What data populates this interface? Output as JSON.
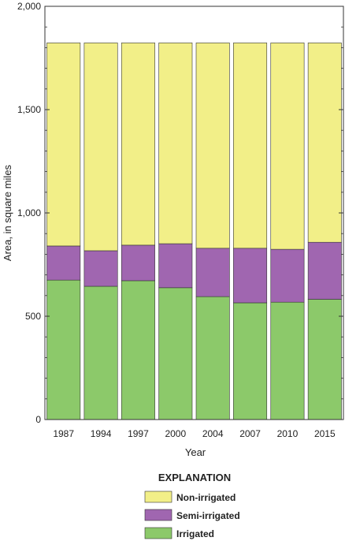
{
  "chart_data": {
    "type": "bar",
    "stacked": true,
    "categories": [
      "1987",
      "1994",
      "1997",
      "2000",
      "2004",
      "2007",
      "2010",
      "2015"
    ],
    "series": [
      {
        "name": "Irrigated",
        "color": "#8cc96a",
        "values": [
          675,
          645,
          672,
          638,
          595,
          565,
          568,
          582
        ]
      },
      {
        "name": "Semi-irrigated",
        "color": "#a066b0",
        "values": [
          165,
          172,
          172,
          213,
          234,
          264,
          256,
          276
        ]
      },
      {
        "name": "Non-irrigated",
        "color": "#f2ef88",
        "values": [
          983,
          1006,
          979,
          972,
          994,
          994,
          999,
          965
        ]
      }
    ],
    "xlabel": "Year",
    "ylabel": "Area, in square miles",
    "ylim": [
      0,
      2000
    ],
    "yticks": [
      0,
      500,
      1000,
      1500,
      2000
    ],
    "ytick_labels": [
      "0",
      "500",
      "1,000",
      "1,500",
      "2,000"
    ],
    "grid": false,
    "legend": {
      "title": "EXPLANATION",
      "placement": "bottom-center",
      "order": [
        "Non-irrigated",
        "Semi-irrigated",
        "Irrigated"
      ]
    }
  }
}
